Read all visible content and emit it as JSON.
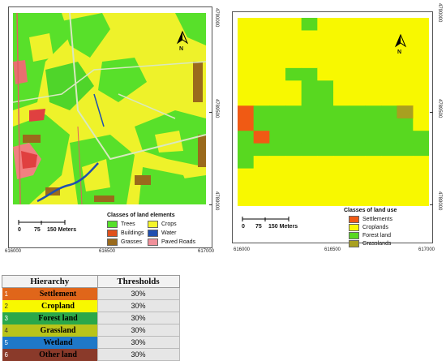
{
  "left_map": {
    "y_coords": [
      "4790000",
      "4789500",
      "4789000"
    ],
    "x_coords": [
      "616000",
      "616500",
      "617000"
    ],
    "north_label": "N",
    "legend": {
      "title": "Classes of land elements",
      "items": [
        {
          "label": "Trees",
          "color": "#55e02a"
        },
        {
          "label": "Crops",
          "color": "#f5f52a"
        },
        {
          "label": "Buildings",
          "color": "#e0501c"
        },
        {
          "label": "Water",
          "color": "#1f4fb0"
        },
        {
          "label": "Grasses",
          "color": "#9a6a1c"
        },
        {
          "label": "Paved Roads",
          "color": "#f0909a"
        }
      ]
    },
    "scale": {
      "labels": [
        "0",
        "75",
        "150 Meters"
      ]
    }
  },
  "right_map": {
    "y_coords": [
      "4790000",
      "4789500",
      "4789000"
    ],
    "x_coords": [
      "616000",
      "616500",
      "617000"
    ],
    "north_label": "N",
    "legend": {
      "title": "Classes of land use",
      "items": [
        {
          "label": "Settlements",
          "color": "#f05a14"
        },
        {
          "label": "Croplands",
          "color": "#f8f800"
        },
        {
          "label": "Forest land",
          "color": "#58d820"
        },
        {
          "label": "Grasslands",
          "color": "#a8a020"
        }
      ]
    },
    "scale": {
      "labels": [
        "0",
        "75",
        "150 Meters"
      ]
    },
    "grid": [
      "yyyygyyyyyyy",
      "yyyyyyyyyyyy",
      "yyyyyyyyyyyy",
      "yyyyyyyyyyyy",
      "yyyggyyyyyyy",
      "yyyyggyyyyyy",
      "yyyyggyyyyyy",
      "ogggggggggoy",
      "oggggggggggy",
      "gogggggggggg",
      "gggggggggggg",
      "gyyyyyyyyyyy",
      "yyyyyyyyyyyy",
      "yyyyyyyyyyyy",
      "yyyyyyyyyyyy"
    ],
    "grid_colors": {
      "y": "#f8f800",
      "g": "#58d820",
      "o": "#f05a14"
    }
  },
  "table": {
    "headers": [
      "Hierarchy",
      "Thresholds"
    ],
    "rows": [
      {
        "num": "1",
        "label": "Settlement",
        "threshold": "30%",
        "color": "#e0661a"
      },
      {
        "num": "2",
        "label": "Cropland",
        "threshold": "30%",
        "color": "#f8f800"
      },
      {
        "num": "3",
        "label": "Forest land",
        "threshold": "30%",
        "color": "#2aa84a"
      },
      {
        "num": "4",
        "label": "Grassland",
        "threshold": "30%",
        "color": "#b9c41a"
      },
      {
        "num": "5",
        "label": "Wetland",
        "threshold": "30%",
        "color": "#1f78c8"
      },
      {
        "num": "6",
        "label": "Other land",
        "threshold": "30%",
        "color": "#8a3a2a"
      }
    ]
  }
}
